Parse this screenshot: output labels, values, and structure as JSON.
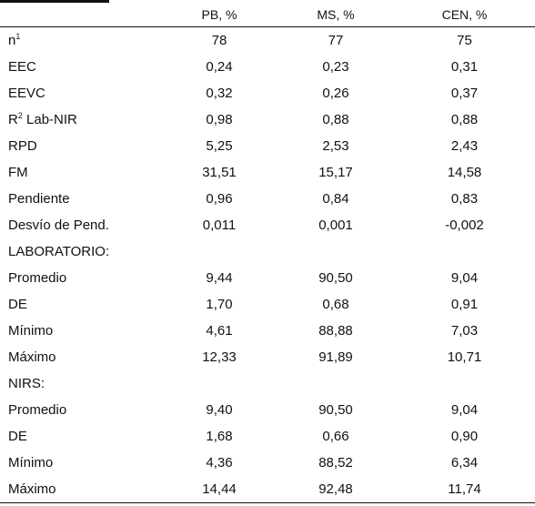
{
  "table": {
    "headers": [
      "",
      "PB, %",
      "MS, %",
      "CEN, %"
    ],
    "rows": [
      {
        "label": "n",
        "sup": "1",
        "values": [
          "78",
          "77",
          "75"
        ]
      },
      {
        "label": "EEC",
        "values": [
          "0,24",
          "0,23",
          "0,31"
        ]
      },
      {
        "label": "EEVC",
        "values": [
          "0,32",
          "0,26",
          "0,37"
        ]
      },
      {
        "label": "R",
        "sup": "2",
        "label_after": " Lab-NIR",
        "values": [
          "0,98",
          "0,88",
          "0,88"
        ]
      },
      {
        "label": "RPD",
        "values": [
          "5,25",
          "2,53",
          "2,43"
        ]
      },
      {
        "label": "FM",
        "values": [
          "31,51",
          "15,17",
          "14,58"
        ]
      },
      {
        "label": "Pendiente",
        "values": [
          "0,96",
          "0,84",
          "0,83"
        ]
      },
      {
        "label": "Desvío de Pend.",
        "values": [
          "0,011",
          "0,001",
          "-0,002"
        ]
      },
      {
        "label": "LABORATORIO:",
        "section": true
      },
      {
        "label": "Promedio",
        "values": [
          "9,44",
          "90,50",
          "9,04"
        ]
      },
      {
        "label": "DE",
        "values": [
          "1,70",
          "0,68",
          "0,91"
        ]
      },
      {
        "label": "Mínimo",
        "values": [
          "4,61",
          "88,88",
          "7,03"
        ]
      },
      {
        "label": "Máximo",
        "values": [
          "12,33",
          "91,89",
          "10,71"
        ]
      },
      {
        "label": "NIRS:",
        "section": true
      },
      {
        "label": "Promedio",
        "values": [
          "9,40",
          "90,50",
          "9,04"
        ]
      },
      {
        "label": "DE",
        "values": [
          "1,68",
          "0,66",
          "0,90"
        ]
      },
      {
        "label": "Mínimo",
        "values": [
          "4,36",
          "88,52",
          "6,34"
        ]
      },
      {
        "label": "Máximo",
        "values": [
          "14,44",
          "92,48",
          "11,74"
        ]
      }
    ]
  }
}
